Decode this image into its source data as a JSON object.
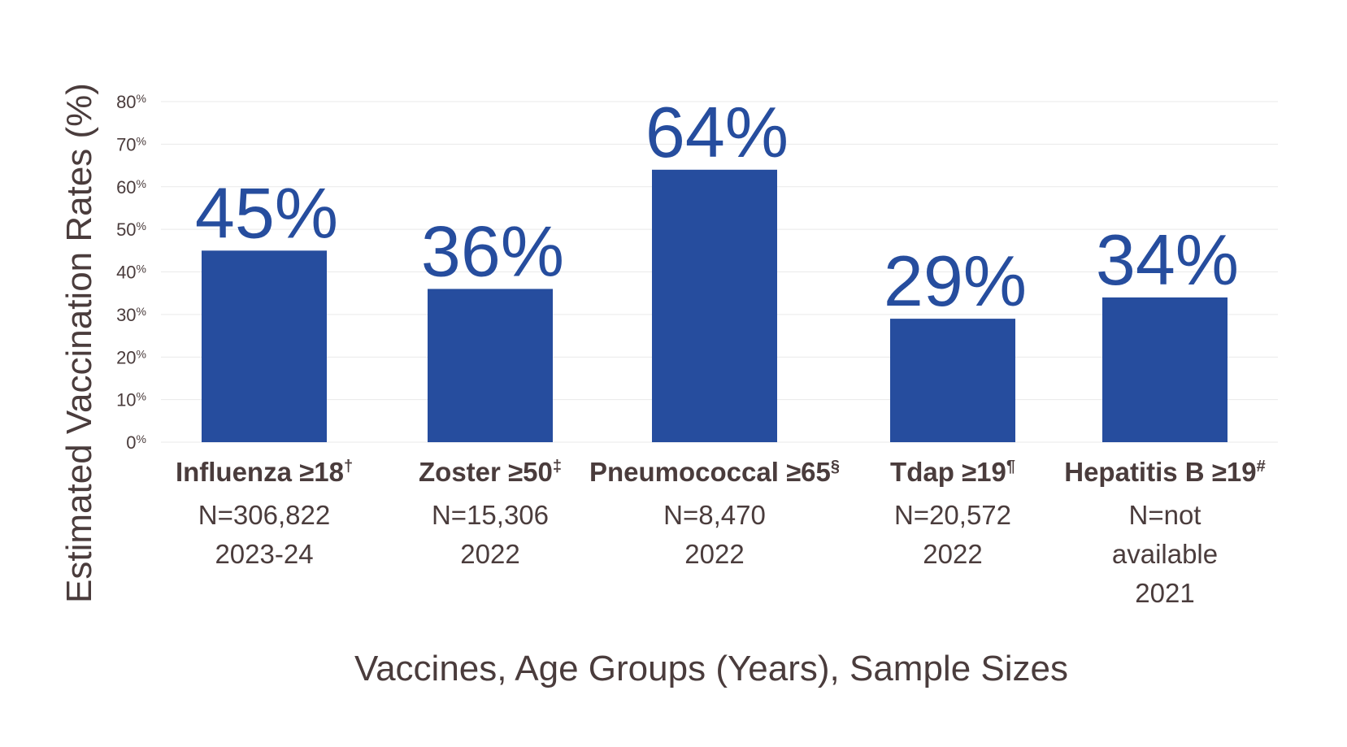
{
  "chart_data": {
    "type": "bar",
    "title": "",
    "xlabel": "Vaccines, Age Groups (Years), Sample Sizes",
    "ylabel": "Estimated Vaccination Rates (%)",
    "ylim": [
      0,
      80
    ],
    "yticks": [
      {
        "value": 0,
        "num": "0",
        "unit": "%"
      },
      {
        "value": 10,
        "num": "10",
        "unit": "%"
      },
      {
        "value": 20,
        "num": "20",
        "unit": "%"
      },
      {
        "value": 30,
        "num": "30",
        "unit": "%"
      },
      {
        "value": 40,
        "num": "40",
        "unit": "%"
      },
      {
        "value": 50,
        "num": "50",
        "unit": "%"
      },
      {
        "value": 60,
        "num": "60",
        "unit": "%"
      },
      {
        "value": 70,
        "num": "70",
        "unit": "%"
      },
      {
        "value": 80,
        "num": "80",
        "unit": "%"
      }
    ],
    "grid": true,
    "bar_color": "#264d9e",
    "label_color": "#264d9e",
    "categories": [
      {
        "name": "Influenza ≥18",
        "mark": "†",
        "lines": [
          "N=306,822",
          "2023-24"
        ]
      },
      {
        "name": "Zoster ≥50",
        "mark": "‡",
        "lines": [
          "N=15,306",
          "2022"
        ]
      },
      {
        "name": "Pneumococcal ≥65",
        "mark": "§",
        "lines": [
          "N=8,470",
          "2022"
        ]
      },
      {
        "name": "Tdap ≥19",
        "mark": "¶",
        "lines": [
          "N=20,572",
          "2022"
        ]
      },
      {
        "name": "Hepatitis B ≥19",
        "mark": "#",
        "lines": [
          "N=not",
          "available",
          "2021"
        ]
      }
    ],
    "values": [
      45,
      36,
      64,
      29,
      34
    ],
    "data_labels": [
      "45%",
      "36%",
      "64%",
      "29%",
      "34%"
    ]
  }
}
